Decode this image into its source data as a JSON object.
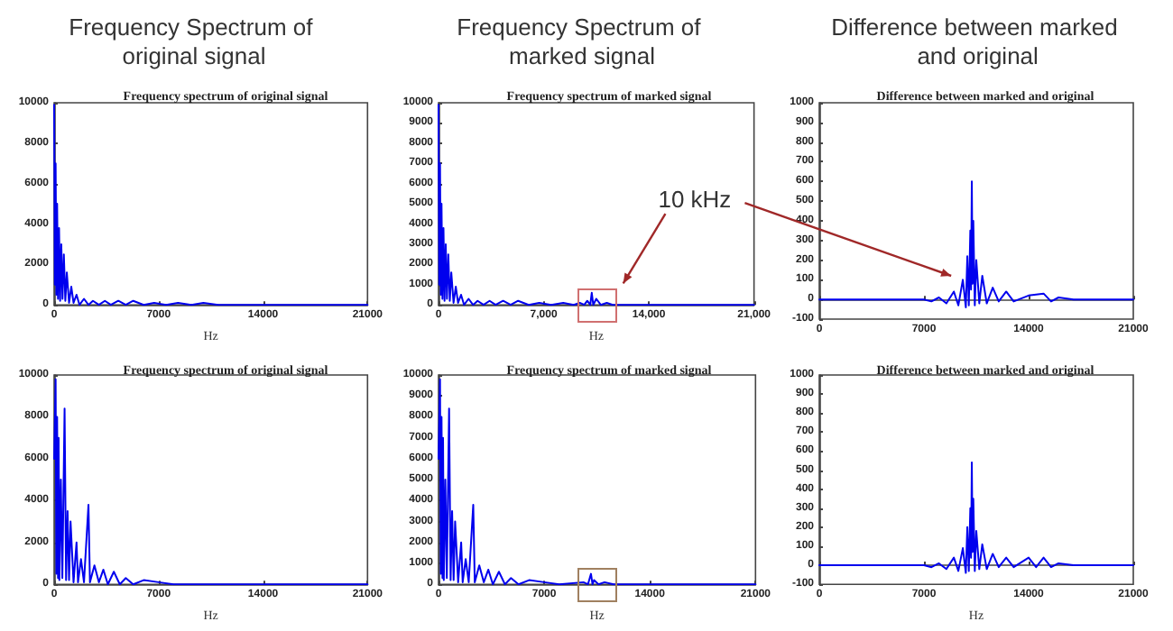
{
  "chart_data": [
    {
      "type": "line",
      "title": "Frequency Spectrum of original signal",
      "subtitle": "Frequency spectrum of original signal",
      "xlabel": "Hz",
      "xlim": [
        0,
        21000
      ],
      "xticks": [
        0,
        7000,
        14000,
        21000
      ],
      "ylim": [
        0,
        10000
      ],
      "yticks": [
        0,
        2000,
        4000,
        6000,
        8000,
        10000
      ],
      "marker": "none",
      "line_style": "solid",
      "series": [
        {
          "color": "#0000ee",
          "x": [
            0,
            50,
            100,
            150,
            200,
            260,
            330,
            400,
            480,
            560,
            650,
            750,
            850,
            1000,
            1150,
            1300,
            1500,
            1700,
            2000,
            2300,
            2600,
            3000,
            3400,
            3800,
            4300,
            4800,
            5300,
            6000,
            6700,
            7500,
            8300,
            9200,
            10000,
            11000,
            12000,
            13000,
            14000,
            21000
          ],
          "values": [
            9900,
            1000,
            7000,
            500,
            5000,
            300,
            3800,
            200,
            3000,
            300,
            2500,
            200,
            1600,
            100,
            900,
            100,
            500,
            0,
            300,
            0,
            200,
            0,
            200,
            0,
            200,
            0,
            200,
            0,
            100,
            0,
            100,
            0,
            100,
            0,
            0,
            0,
            0,
            0
          ]
        }
      ]
    },
    {
      "type": "line",
      "title": "Frequency Spectrum of marked signal",
      "subtitle": "Frequency spectrum of marked signal",
      "xlabel": "Hz",
      "xlim": [
        0,
        21000
      ],
      "xticks": [
        0,
        {
          "value": 7000,
          "label": "7,000"
        },
        {
          "value": 14000,
          "label": "14,000"
        },
        {
          "value": 21000,
          "label": "21,000"
        }
      ],
      "ylim": [
        0,
        10000
      ],
      "yticks": [
        0,
        1000,
        2000,
        3000,
        4000,
        5000,
        6000,
        7000,
        8000,
        9000,
        10000
      ],
      "marker": "none",
      "line_style": "solid",
      "annotations": [
        "10 kHz"
      ],
      "series": [
        {
          "color": "#0000ee",
          "x": [
            0,
            50,
            100,
            150,
            200,
            260,
            330,
            400,
            480,
            560,
            650,
            750,
            850,
            1000,
            1150,
            1300,
            1500,
            1700,
            2000,
            2300,
            2600,
            3000,
            3400,
            3800,
            4300,
            4800,
            5300,
            6000,
            6700,
            7500,
            8300,
            9000,
            9400,
            9700,
            9900,
            10100,
            10200,
            10300,
            10500,
            10800,
            11200,
            11600,
            12000,
            13000,
            21000
          ],
          "values": [
            9900,
            1000,
            7000,
            500,
            5000,
            300,
            3800,
            200,
            3000,
            300,
            2500,
            200,
            1600,
            100,
            900,
            100,
            500,
            0,
            300,
            0,
            200,
            0,
            200,
            0,
            200,
            0,
            200,
            0,
            100,
            0,
            100,
            0,
            100,
            0,
            200,
            0,
            600,
            0,
            300,
            0,
            100,
            0,
            0,
            0,
            0
          ]
        }
      ]
    },
    {
      "type": "line",
      "title": "Difference between marked and original",
      "subtitle": "Difference between marked and original",
      "xlim": [
        0,
        21000
      ],
      "xticks": [
        0,
        7000,
        14000,
        21000
      ],
      "ylim": [
        -100,
        1000
      ],
      "yticks": [
        -100,
        0,
        100,
        200,
        300,
        400,
        500,
        600,
        700,
        800,
        900,
        1000
      ],
      "marker": "none",
      "line_style": "solid",
      "series": [
        {
          "color": "#0000ee",
          "x": [
            0,
            3000,
            6000,
            7000,
            7500,
            8000,
            8500,
            9000,
            9300,
            9600,
            9800,
            9900,
            10000,
            10100,
            10150,
            10200,
            10250,
            10300,
            10400,
            10500,
            10700,
            10900,
            11200,
            11600,
            12000,
            12500,
            13000,
            14000,
            15000,
            15500,
            16000,
            17000,
            18000,
            21000
          ],
          "values": [
            0,
            0,
            0,
            0,
            -10,
            10,
            -20,
            40,
            -30,
            100,
            -40,
            220,
            -30,
            350,
            50,
            600,
            80,
            400,
            -30,
            200,
            -20,
            120,
            -20,
            60,
            -10,
            40,
            -10,
            20,
            30,
            -10,
            10,
            0,
            0,
            0
          ]
        }
      ]
    },
    {
      "type": "line",
      "subtitle": "Frequency spectrum of original signal",
      "xlabel": "Hz",
      "xlim": [
        0,
        21000
      ],
      "xticks": [
        0,
        7000,
        14000,
        21000
      ],
      "ylim": [
        0,
        10000
      ],
      "yticks": [
        0,
        2000,
        4000,
        6000,
        8000,
        10000
      ],
      "marker": "none",
      "line_style": "solid",
      "series": [
        {
          "color": "#0000ee",
          "x": [
            0,
            100,
            150,
            200,
            260,
            300,
            350,
            450,
            550,
            700,
            800,
            900,
            1000,
            1100,
            1300,
            1500,
            1600,
            1800,
            2000,
            2300,
            2400,
            2700,
            3000,
            3300,
            3600,
            4000,
            4400,
            4800,
            5300,
            6000,
            7000,
            8000,
            21000
          ],
          "values": [
            6000,
            9800,
            500,
            8000,
            300,
            7000,
            200,
            5000,
            300,
            8400,
            200,
            3500,
            200,
            3000,
            100,
            2000,
            100,
            1200,
            100,
            3800,
            100,
            900,
            100,
            700,
            0,
            600,
            0,
            300,
            0,
            200,
            100,
            0,
            0
          ]
        }
      ]
    },
    {
      "type": "line",
      "subtitle": "Frequency spectrum of marked signal",
      "xlabel": "Hz",
      "xlim": [
        0,
        21000
      ],
      "xticks": [
        0,
        7000,
        14000,
        21000
      ],
      "ylim": [
        0,
        10000
      ],
      "yticks": [
        0,
        1000,
        2000,
        3000,
        4000,
        5000,
        6000,
        7000,
        8000,
        9000,
        10000
      ],
      "marker": "none",
      "line_style": "solid",
      "series": [
        {
          "color": "#0000ee",
          "x": [
            0,
            100,
            150,
            200,
            260,
            300,
            350,
            450,
            550,
            700,
            800,
            900,
            1000,
            1100,
            1300,
            1500,
            1600,
            1800,
            2000,
            2300,
            2400,
            2700,
            3000,
            3300,
            3600,
            4000,
            4400,
            4800,
            5300,
            6000,
            7000,
            8000,
            9600,
            9900,
            10100,
            10200,
            10300,
            10600,
            11000,
            11600,
            12500,
            21000
          ],
          "values": [
            6000,
            9800,
            500,
            8000,
            300,
            7000,
            200,
            5000,
            300,
            8400,
            200,
            3500,
            200,
            3000,
            100,
            2000,
            100,
            1200,
            100,
            3800,
            100,
            900,
            100,
            700,
            0,
            600,
            0,
            300,
            0,
            200,
            100,
            0,
            100,
            0,
            500,
            0,
            200,
            0,
            100,
            0,
            0,
            0
          ]
        }
      ]
    },
    {
      "type": "line",
      "subtitle": "Difference between marked and original",
      "xlabel": "Hz",
      "xlim": [
        0,
        21000
      ],
      "xticks": [
        0,
        7000,
        14000,
        21000
      ],
      "ylim": [
        -100,
        1000
      ],
      "yticks": [
        -100,
        0,
        100,
        200,
        300,
        400,
        500,
        600,
        700,
        800,
        900,
        1000
      ],
      "marker": "none",
      "line_style": "solid",
      "series": [
        {
          "color": "#0000ee",
          "x": [
            0,
            3000,
            6000,
            7000,
            7500,
            8000,
            8500,
            9000,
            9300,
            9600,
            9800,
            9900,
            10000,
            10100,
            10150,
            10200,
            10250,
            10300,
            10400,
            10500,
            10700,
            10900,
            11200,
            11600,
            12000,
            12500,
            13000,
            14000,
            14500,
            15000,
            15500,
            16000,
            17000,
            18000,
            21000
          ],
          "values": [
            0,
            0,
            0,
            0,
            -10,
            10,
            -20,
            40,
            -30,
            90,
            -40,
            200,
            -30,
            300,
            40,
            540,
            70,
            350,
            -30,
            180,
            -20,
            110,
            -20,
            60,
            -10,
            40,
            -10,
            40,
            -10,
            40,
            -10,
            10,
            0,
            0,
            0
          ]
        }
      ]
    }
  ]
}
